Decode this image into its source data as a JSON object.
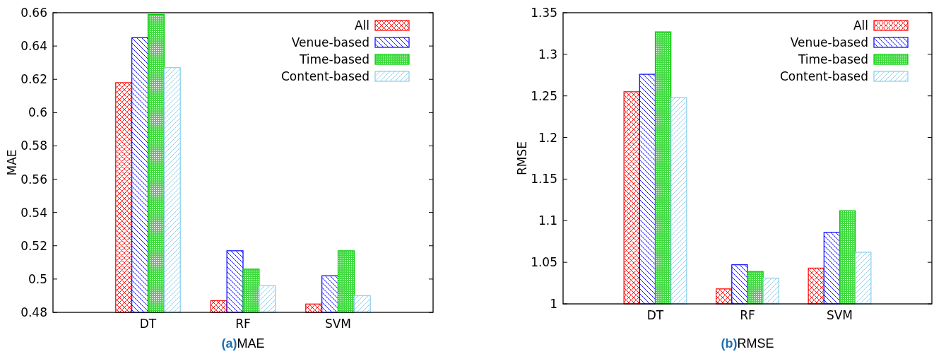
{
  "chart_data": [
    {
      "type": "bar",
      "title": "(a)MAE",
      "ylabel": "MAE",
      "categories": [
        "DT",
        "RF",
        "SVM"
      ],
      "ylim": [
        0.48,
        0.66
      ],
      "yticks": [
        0.48,
        0.5,
        0.52,
        0.54,
        0.56,
        0.58,
        0.6,
        0.62,
        0.64,
        0.66
      ],
      "legend": "top right",
      "grid": false,
      "series": [
        {
          "name": "All",
          "color": "#ff0000",
          "values": [
            0.618,
            0.487,
            0.485
          ]
        },
        {
          "name": "Venue-based",
          "color": "#0000ff",
          "values": [
            0.645,
            0.517,
            0.502
          ]
        },
        {
          "name": "Time-based",
          "color": "#00cc00",
          "values": [
            0.659,
            0.506,
            0.517
          ]
        },
        {
          "name": "Content-based",
          "color": "#87ceeb",
          "values": [
            0.627,
            0.496,
            0.49
          ]
        }
      ]
    },
    {
      "type": "bar",
      "title": "(b)RMSE",
      "ylabel": "RMSE",
      "categories": [
        "DT",
        "RF",
        "SVM"
      ],
      "ylim": [
        1,
        1.35
      ],
      "yticks": [
        1,
        1.05,
        1.1,
        1.15,
        1.2,
        1.25,
        1.3,
        1.35
      ],
      "legend": "top right",
      "grid": false,
      "series": [
        {
          "name": "All",
          "color": "#ff0000",
          "values": [
            1.255,
            1.018,
            1.043
          ]
        },
        {
          "name": "Venue-based",
          "color": "#0000ff",
          "values": [
            1.276,
            1.047,
            1.086
          ]
        },
        {
          "name": "Time-based",
          "color": "#00cc00",
          "values": [
            1.327,
            1.039,
            1.112
          ]
        },
        {
          "name": "Content-based",
          "color": "#87ceeb",
          "values": [
            1.248,
            1.031,
            1.062
          ]
        }
      ]
    }
  ]
}
